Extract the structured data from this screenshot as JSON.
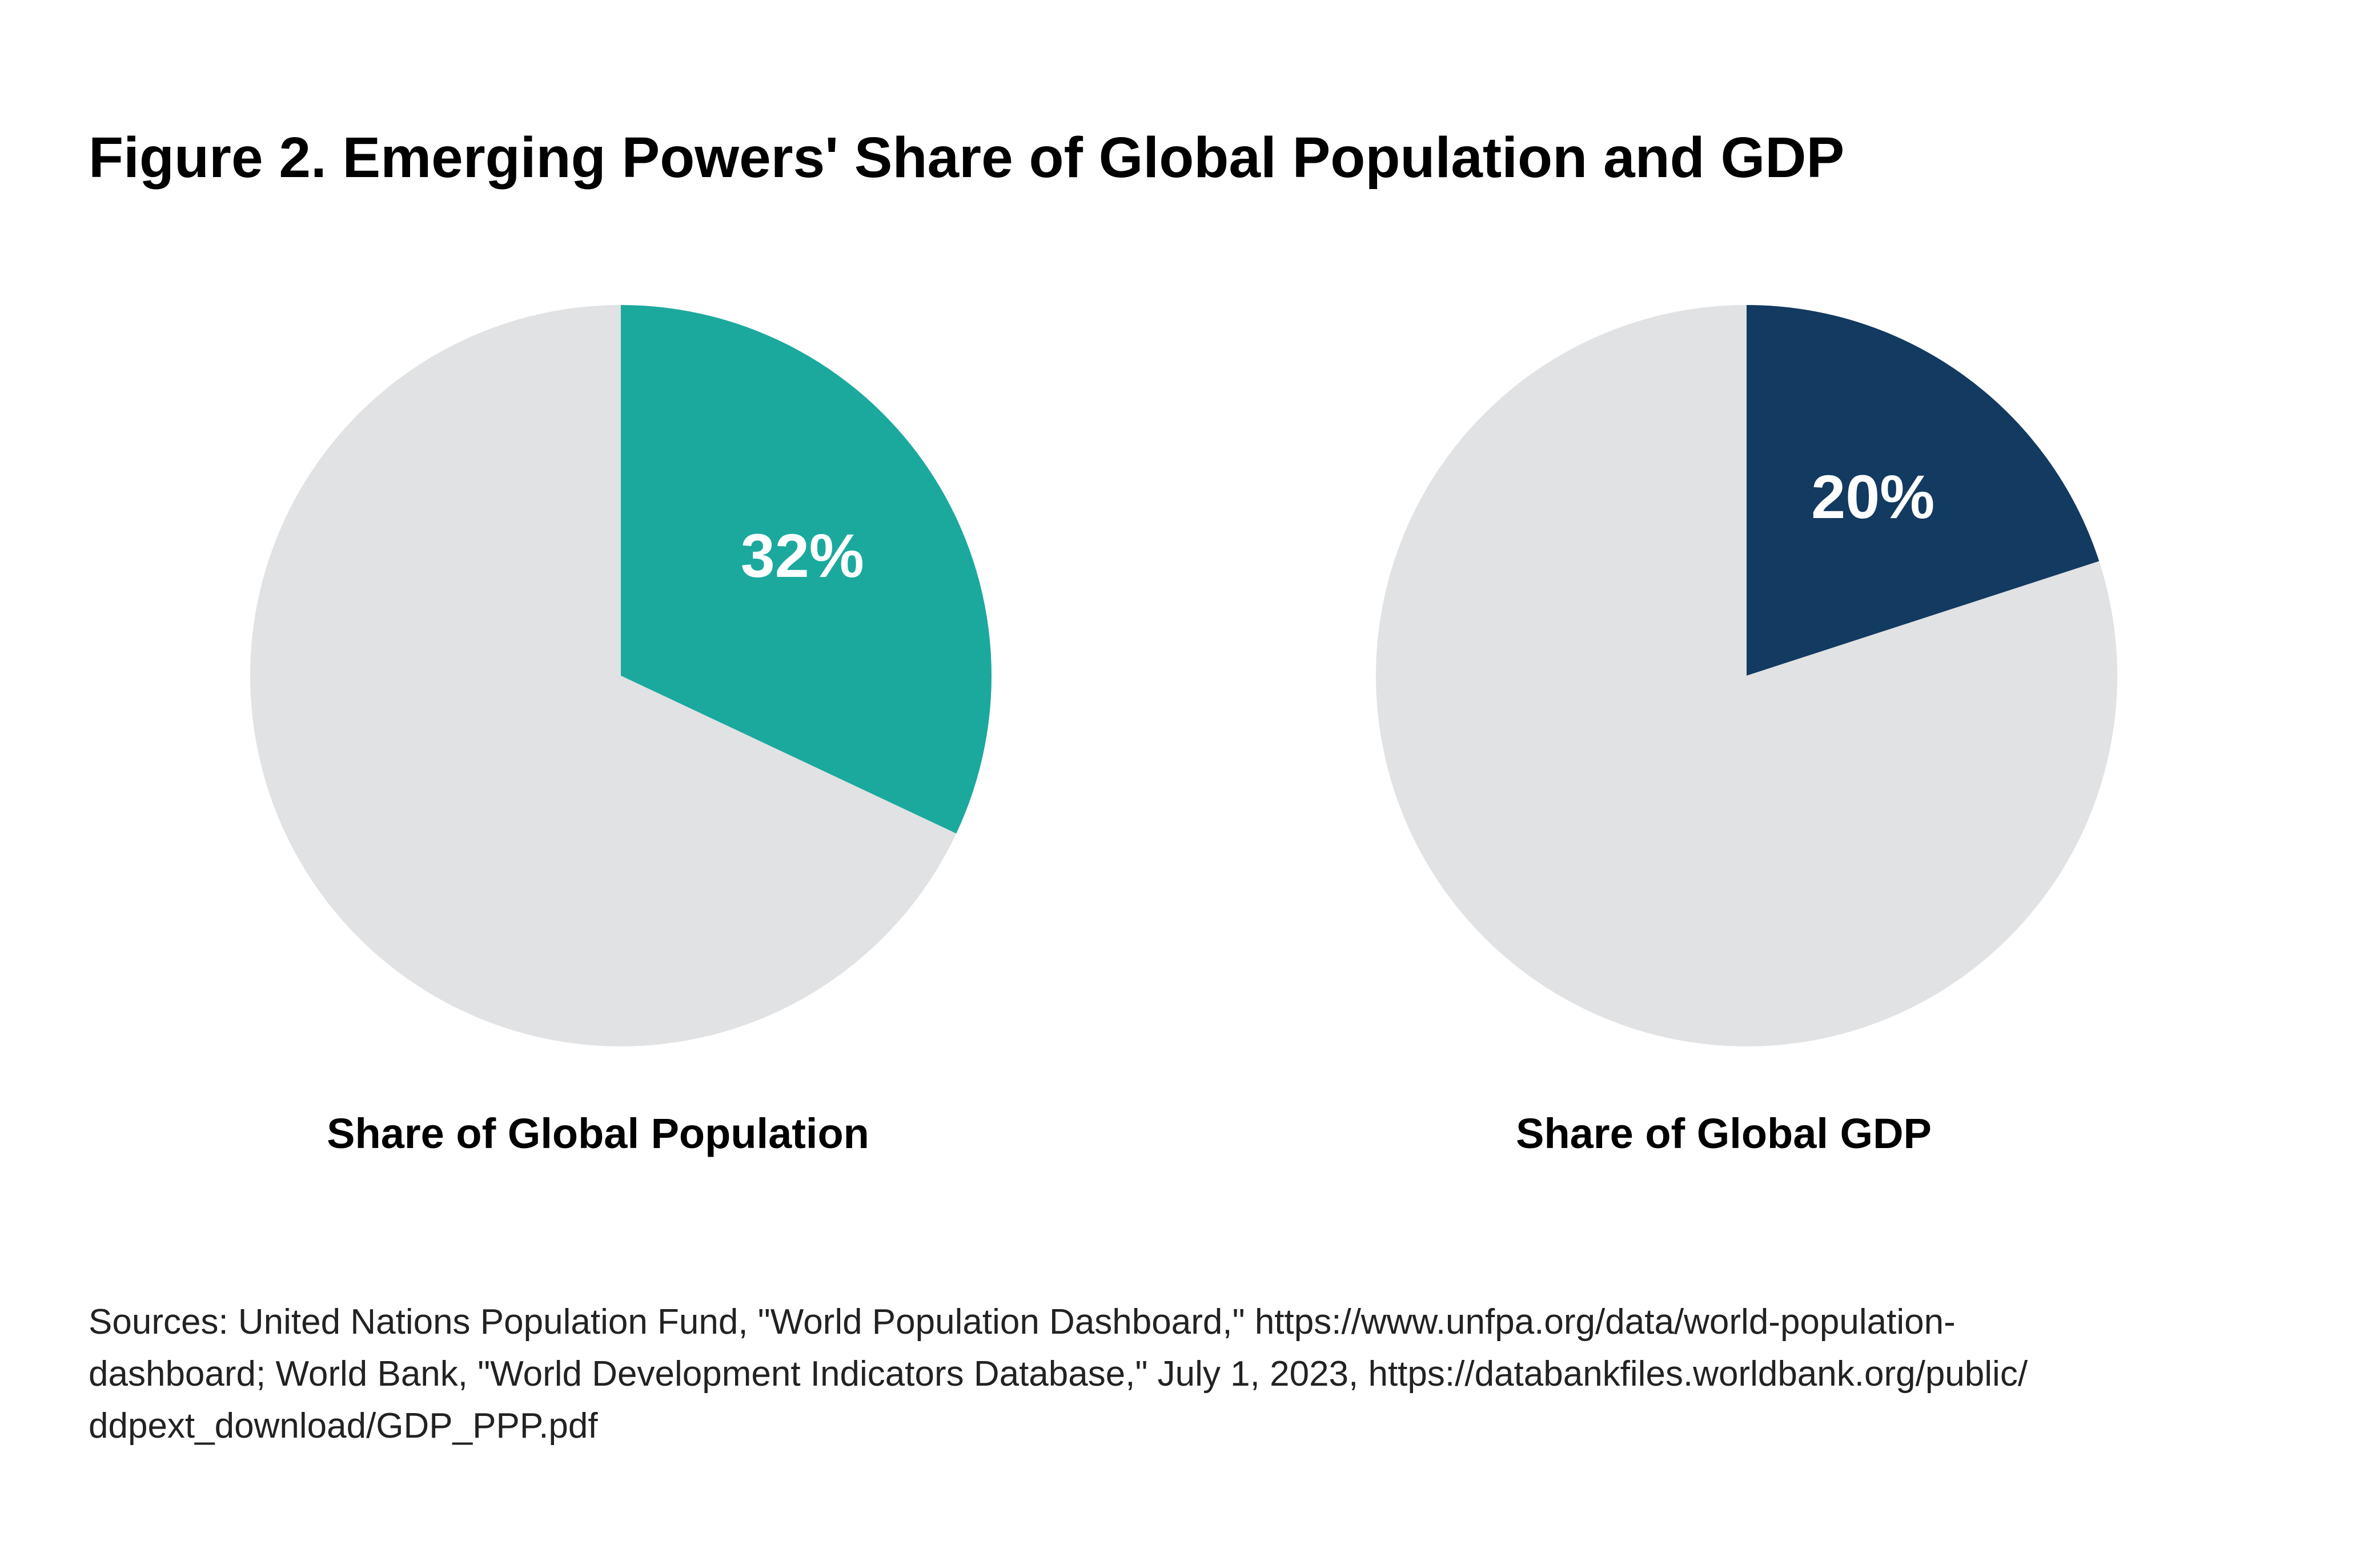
{
  "title": "Figure 2. Emerging Powers' Share of Global Population and GDP",
  "chart_data": [
    {
      "type": "pie",
      "title": "Share of Global Population",
      "values": [
        32,
        68
      ],
      "value_labels": [
        "32%",
        null
      ],
      "colors": [
        "#1ba99e",
        "#e1e2e4"
      ]
    },
    {
      "type": "pie",
      "title": "Share of Global GDP",
      "values": [
        20,
        80
      ],
      "value_labels": [
        "20%",
        null
      ],
      "colors": [
        "#133a60",
        "#e1e2e4"
      ]
    }
  ],
  "source": [
    "Sources: United Nations Population Fund, \"World Population Dashboard,\"  https://www.unfpa.org/data/world-population-",
    "dashboard; World Bank, \"World Development Indicators Database,\" July 1, 2023, https://databankfiles.worldbank.org/public/",
    "ddpext_download/GDP_PPP.pdf"
  ]
}
